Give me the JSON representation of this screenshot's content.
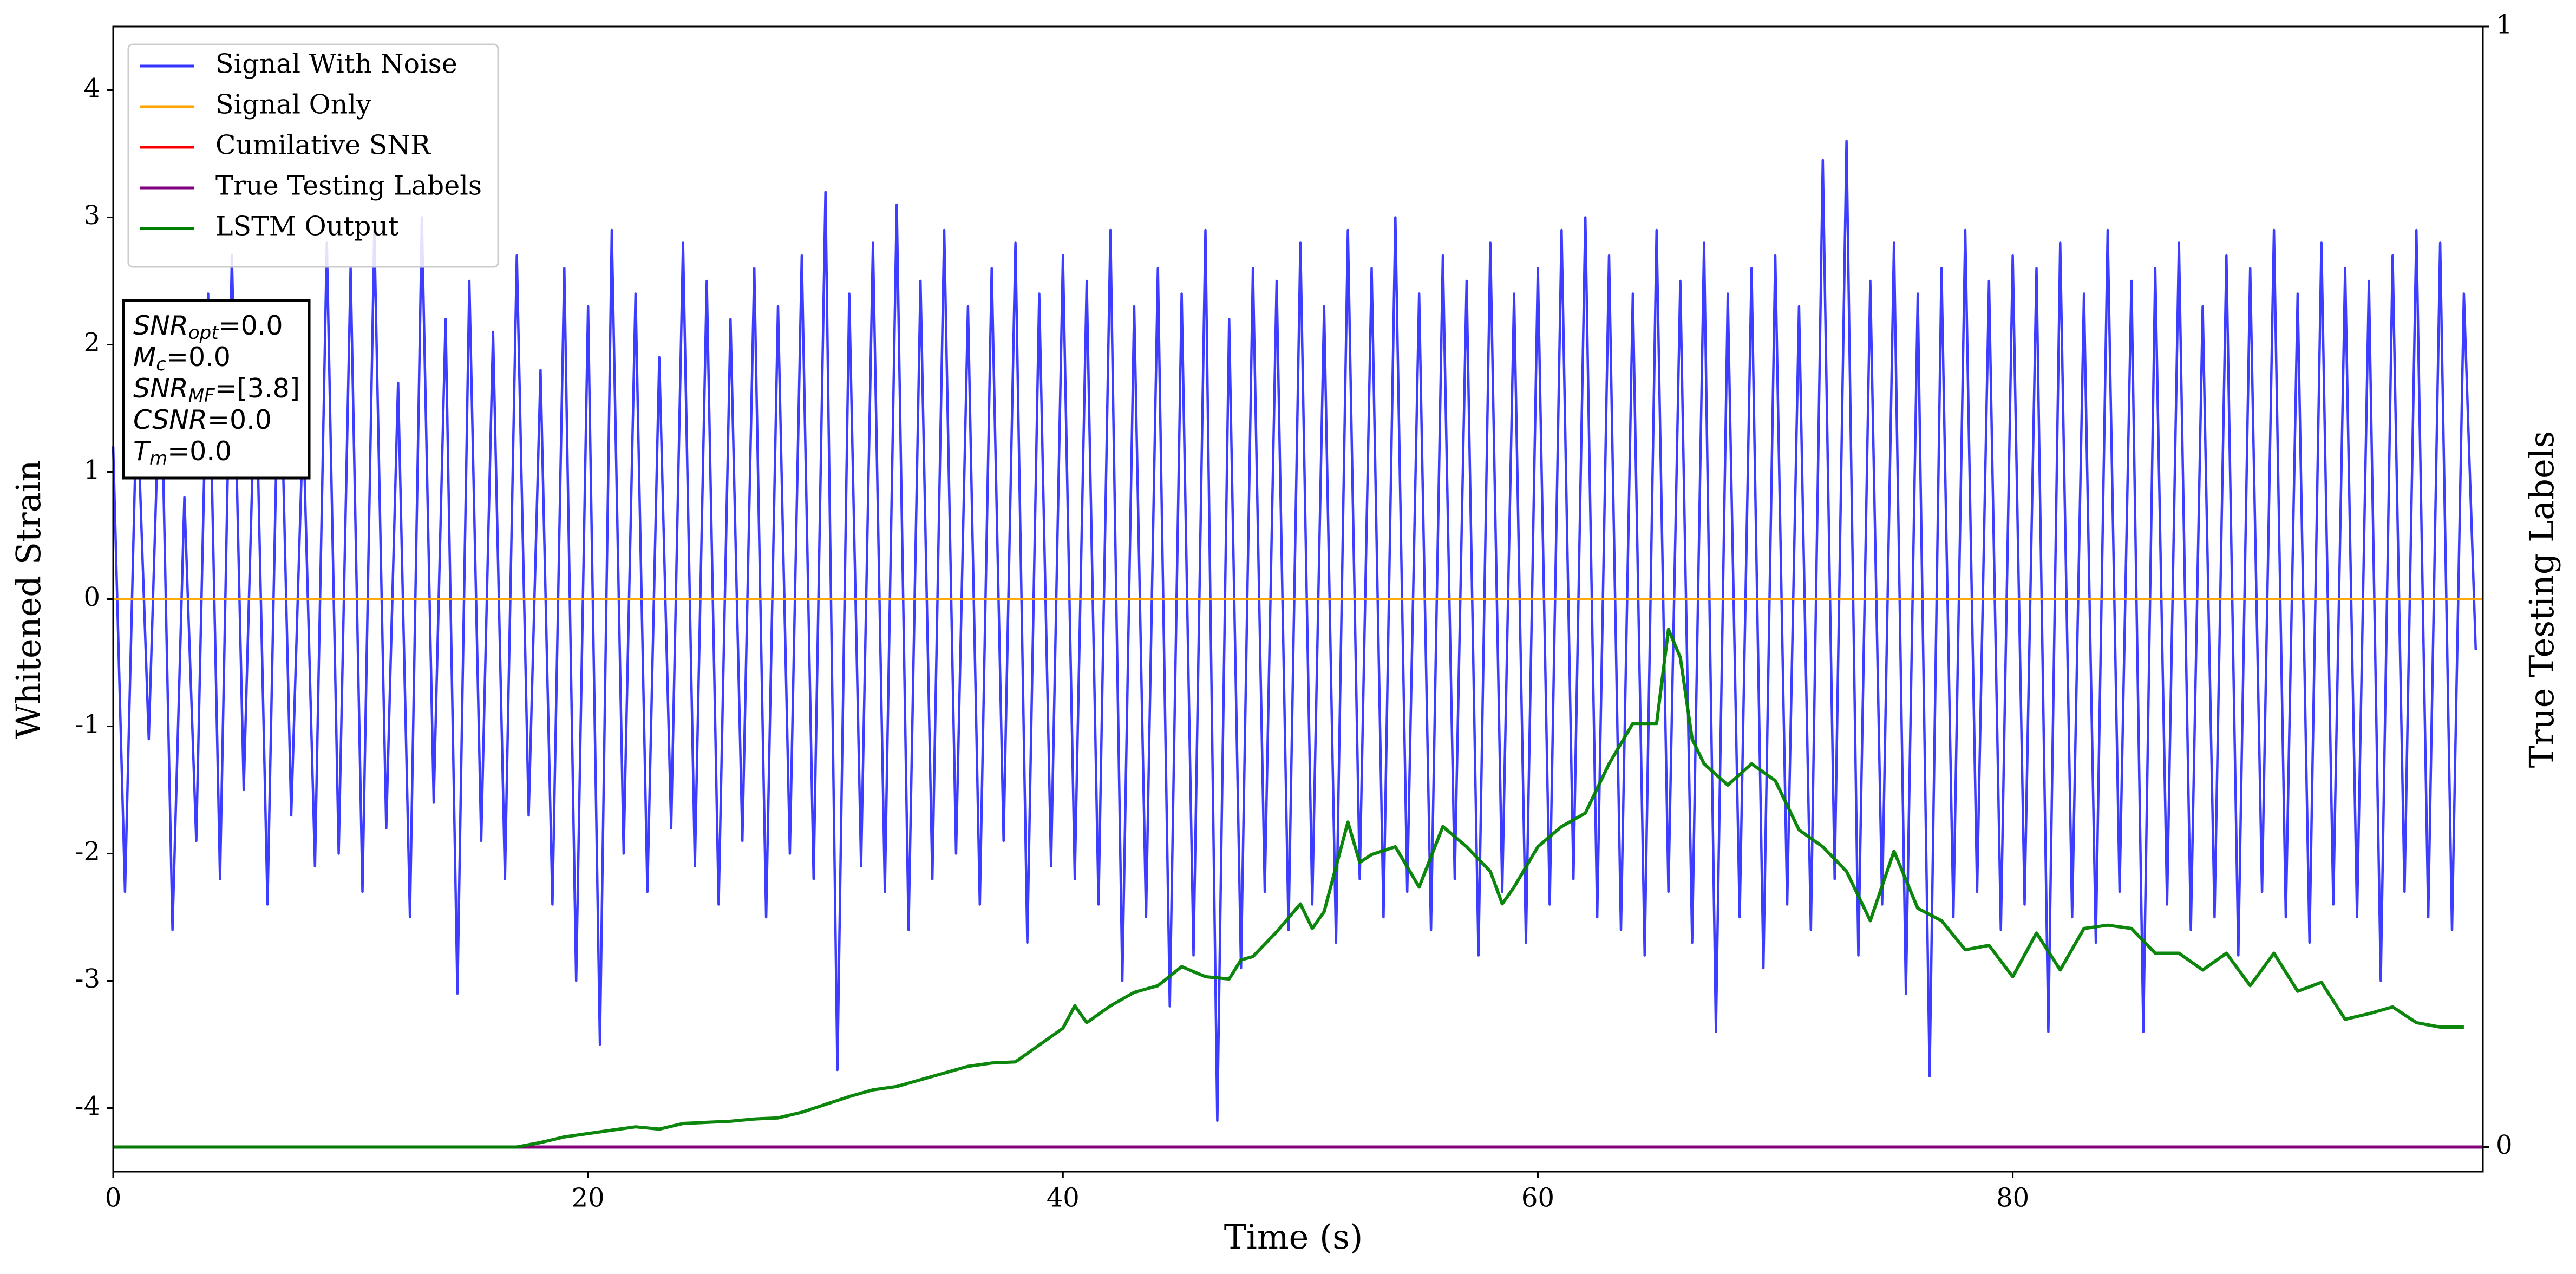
{
  "chart_data": {
    "type": "line",
    "xlabel": "Time (s)",
    "ylabel": "Whitened Strain",
    "y2label": "True Testing Labels",
    "xlim": [
      0,
      99.8
    ],
    "ylim": [
      -4.5,
      4.5
    ],
    "y2lim": [
      -0.022,
      1
    ],
    "xticks": [
      0,
      20,
      40,
      60,
      80
    ],
    "yticks": [
      -4,
      -3,
      -2,
      -1,
      0,
      1,
      2,
      3,
      4
    ],
    "y2ticks": [
      0,
      1
    ],
    "legend": "upper left",
    "annotation": [
      {
        "main": "SNR",
        "sub": "opt",
        "rest": "=0.0"
      },
      {
        "main": "M",
        "sub": "c",
        "rest": "=0.0"
      },
      {
        "main": "SNR",
        "sub": "MF",
        "rest": "=[3.8]"
      },
      {
        "main": "CSNR",
        "rest": "=0.0"
      },
      {
        "main": "T",
        "sub": "m",
        "rest": "=0.0"
      }
    ],
    "series": [
      {
        "name": "Signal With Noise",
        "color": "#3333ff",
        "width": 1.5,
        "x": [
          0,
          0.5,
          1,
          1.5,
          2,
          2.5,
          3,
          3.5,
          4,
          4.5,
          5,
          5.5,
          6,
          6.5,
          7,
          7.5,
          8,
          8.5,
          9,
          9.5,
          10,
          10.5,
          11,
          11.5,
          12,
          12.5,
          13,
          13.5,
          14,
          14.5,
          15,
          15.5,
          16,
          16.5,
          17,
          17.5,
          18,
          18.5,
          19,
          19.5,
          20,
          20.5,
          21,
          21.5,
          22,
          22.5,
          23,
          23.5,
          24,
          24.5,
          25,
          25.5,
          26,
          26.5,
          27,
          27.5,
          28,
          28.5,
          29,
          29.5,
          30,
          30.5,
          31,
          31.5,
          32,
          32.5,
          33,
          33.5,
          34,
          34.5,
          35,
          35.5,
          36,
          36.5,
          37,
          37.5,
          38,
          38.5,
          39,
          39.5,
          40,
          40.5,
          41,
          41.5,
          42,
          42.5,
          43,
          43.5,
          44,
          44.5,
          45,
          45.5,
          46,
          46.5,
          47,
          47.5,
          48,
          48.5,
          49,
          49.5,
          50,
          50.5,
          51,
          51.5,
          52,
          52.5,
          53,
          53.5,
          54,
          54.5,
          55,
          55.5,
          56,
          56.5,
          57,
          57.5,
          58,
          58.5,
          59,
          59.5,
          60,
          60.5,
          61,
          61.5,
          62,
          62.5,
          63,
          63.5,
          64,
          64.5,
          65,
          65.5,
          66,
          66.5,
          67,
          67.5,
          68,
          68.5,
          69,
          69.5,
          70,
          70.5,
          71,
          71.5,
          72,
          72.5,
          73,
          73.5,
          74,
          74.5,
          75,
          75.5,
          76,
          76.5,
          77,
          77.5,
          78,
          78.5,
          79,
          79.5,
          80,
          80.5,
          81,
          81.5,
          82,
          82.5,
          83,
          83.5,
          84,
          84.5,
          85,
          85.5,
          86,
          86.5,
          87,
          87.5,
          88,
          88.5,
          89,
          89.5,
          90,
          90.5,
          91,
          91.5,
          92,
          92.5,
          93,
          93.5,
          94,
          94.5,
          95,
          95.5,
          96,
          96.5,
          97,
          97.5,
          98,
          98.5,
          99,
          99.5
        ],
        "values": [
          1.2,
          -2.3,
          1.6,
          -1.1,
          2.0,
          -2.6,
          0.8,
          -1.9,
          2.4,
          -2.2,
          2.7,
          -1.5,
          1.9,
          -2.4,
          2.3,
          -1.7,
          1.4,
          -2.1,
          2.8,
          -2.0,
          2.6,
          -2.3,
          2.9,
          -1.8,
          1.7,
          -2.5,
          3.0,
          -1.6,
          2.2,
          -3.1,
          2.5,
          -1.9,
          2.1,
          -2.2,
          2.7,
          -1.7,
          1.8,
          -2.4,
          2.6,
          -3.0,
          2.3,
          -3.5,
          2.9,
          -2.0,
          2.4,
          -2.3,
          1.9,
          -1.8,
          2.8,
          -2.1,
          2.5,
          -2.4,
          2.2,
          -1.9,
          2.6,
          -2.5,
          2.3,
          -2.0,
          2.7,
          -2.2,
          3.2,
          -3.7,
          2.4,
          -2.1,
          2.8,
          -2.3,
          3.1,
          -2.6,
          2.5,
          -2.2,
          2.9,
          -2.0,
          2.3,
          -2.4,
          2.6,
          -1.9,
          2.8,
          -2.7,
          2.4,
          -2.1,
          2.7,
          -2.2,
          2.5,
          -2.4,
          2.9,
          -3.0,
          2.3,
          -2.5,
          2.6,
          -3.2,
          2.4,
          -2.8,
          2.9,
          -4.1,
          2.2,
          -2.9,
          2.6,
          -2.3,
          2.5,
          -2.6,
          2.8,
          -2.4,
          2.3,
          -2.7,
          2.9,
          -2.2,
          2.6,
          -2.5,
          3.0,
          -2.3,
          2.4,
          -2.6,
          2.7,
          -2.2,
          2.5,
          -2.8,
          2.8,
          -2.3,
          2.4,
          -2.7,
          2.6,
          -2.4,
          2.9,
          -2.2,
          3.0,
          -2.5,
          2.7,
          -2.6,
          2.4,
          -2.8,
          2.9,
          -2.3,
          2.5,
          -2.7,
          2.8,
          -3.4,
          2.4,
          -2.5,
          2.6,
          -2.9,
          2.7,
          -2.4,
          2.3,
          -2.6,
          3.45,
          -2.2,
          3.6,
          -2.8,
          2.5,
          -2.4,
          2.8,
          -3.1,
          2.4,
          -3.75,
          2.6,
          -2.5,
          2.9,
          -2.3,
          2.5,
          -2.6,
          2.7,
          -2.4,
          2.6,
          -3.4,
          2.8,
          -2.5,
          2.4,
          -2.7,
          2.9,
          -2.3,
          2.5,
          -3.4,
          2.6,
          -2.4,
          2.8,
          -2.6,
          2.3,
          -2.5,
          2.7,
          -2.8,
          2.6,
          -2.3,
          2.9,
          -2.5,
          2.4,
          -2.7,
          2.8,
          -2.4,
          2.6,
          -2.5,
          2.5,
          -3.0,
          2.7,
          -2.3,
          2.9,
          -2.5,
          2.8,
          -2.6,
          2.4,
          -0.4
        ]
      },
      {
        "name": "Signal Only",
        "color": "#ffa500",
        "width": 1.5,
        "x": [
          0,
          99.8
        ],
        "values": [
          0,
          0
        ]
      },
      {
        "name": "Cumilative SNR",
        "color": "#ff0000",
        "width": 1.5,
        "axis": "y2",
        "x": [
          0,
          99.8
        ],
        "values": [
          0,
          0
        ]
      },
      {
        "name": "True Testing Labels",
        "color": "#800080",
        "width": 2,
        "axis": "y2",
        "x": [
          0,
          99.8
        ],
        "values": [
          0,
          0
        ]
      },
      {
        "name": "LSTM Output",
        "color": "#008000",
        "width": 2,
        "axis": "y2",
        "x": [
          0,
          17,
          18,
          19,
          20,
          21,
          22,
          23,
          24,
          25,
          26,
          27,
          28,
          29,
          30,
          31,
          32,
          33,
          34,
          35,
          36,
          37,
          38,
          39,
          40,
          40.5,
          41,
          42,
          43,
          44,
          45,
          46,
          47,
          47.5,
          48,
          49,
          50,
          50.5,
          51,
          52,
          52.5,
          53,
          54,
          55,
          56,
          57,
          58,
          58.5,
          59,
          60,
          61,
          62,
          63,
          64,
          65,
          65.5,
          66,
          66.5,
          67,
          68,
          69,
          70,
          71,
          72,
          73,
          74,
          75,
          76,
          77,
          78,
          79,
          80,
          81,
          82,
          83,
          84,
          85,
          86,
          87,
          88,
          89,
          90,
          91,
          92,
          93,
          94,
          95,
          96,
          97,
          98,
          99
        ],
        "values": [
          0,
          0,
          0.004,
          0.009,
          0.012,
          0.015,
          0.018,
          0.016,
          0.021,
          0.022,
          0.023,
          0.025,
          0.026,
          0.031,
          0.038,
          0.045,
          0.051,
          0.054,
          0.06,
          0.066,
          0.072,
          0.075,
          0.076,
          0.091,
          0.106,
          0.126,
          0.111,
          0.126,
          0.138,
          0.144,
          0.161,
          0.152,
          0.15,
          0.167,
          0.17,
          0.192,
          0.217,
          0.195,
          0.21,
          0.29,
          0.254,
          0.261,
          0.268,
          0.232,
          0.286,
          0.268,
          0.246,
          0.217,
          0.232,
          0.268,
          0.286,
          0.298,
          0.342,
          0.378,
          0.378,
          0.462,
          0.437,
          0.364,
          0.342,
          0.323,
          0.342,
          0.327,
          0.283,
          0.268,
          0.246,
          0.202,
          0.264,
          0.213,
          0.202,
          0.176,
          0.18,
          0.152,
          0.191,
          0.158,
          0.195,
          0.198,
          0.195,
          0.173,
          0.173,
          0.158,
          0.173,
          0.144,
          0.173,
          0.139,
          0.147,
          0.114,
          0.119,
          0.125,
          0.111,
          0.107,
          0.107
        ]
      }
    ]
  }
}
